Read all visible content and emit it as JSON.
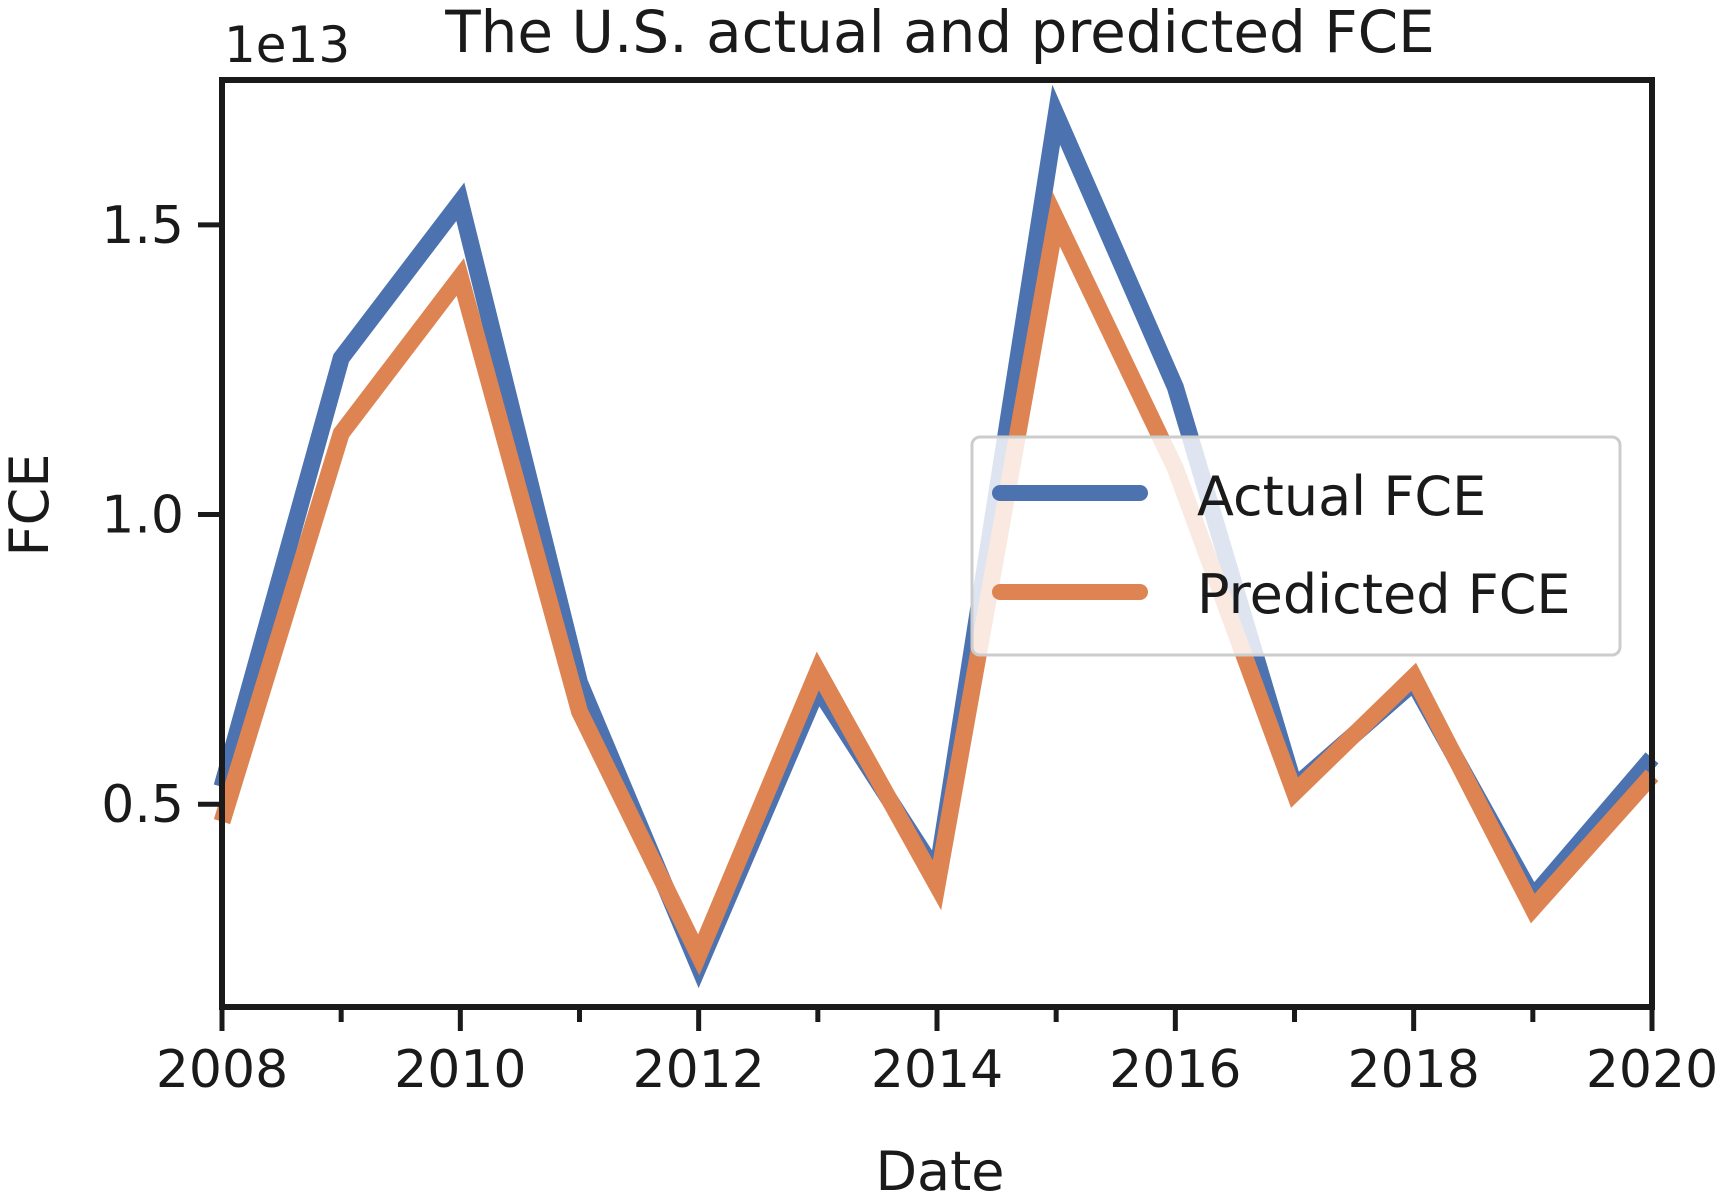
{
  "chart_data": {
    "type": "line",
    "title": "The U.S. actual and predicted FCE",
    "xlabel": "Date",
    "ylabel": "FCE",
    "y_offset_label": "1e13",
    "y_multiplier": 10000000000000.0,
    "x": [
      2008,
      2009,
      2010,
      2011,
      2012,
      2013,
      2014,
      2015,
      2016,
      2017,
      2018,
      2019,
      2020
    ],
    "xlim": [
      2008,
      2020
    ],
    "ylim": [
      0.15,
      1.75
    ],
    "x_ticks": [
      2008,
      2010,
      2012,
      2014,
      2016,
      2018,
      2020
    ],
    "x_tick_labels": [
      "2008",
      "2010",
      "2012",
      "2014",
      "2016",
      "2018",
      "2020"
    ],
    "x_minor_ticks": [
      2009,
      2011,
      2013,
      2015,
      2017,
      2019
    ],
    "y_ticks": [
      0.5,
      1.0,
      1.5
    ],
    "y_tick_labels": [
      "0.5",
      "1.0",
      "1.5"
    ],
    "grid": false,
    "legend_position": "center-right",
    "series": [
      {
        "name": "Actual FCE",
        "color": "#4c72b0",
        "values": [
          0.53,
          1.27,
          1.54,
          0.71,
          0.22,
          0.7,
          0.38,
          1.69,
          1.22,
          0.53,
          0.71,
          0.34,
          0.58
        ]
      },
      {
        "name": "Predicted FCE",
        "color": "#dd8452",
        "values": [
          0.47,
          1.14,
          1.41,
          0.66,
          0.24,
          0.73,
          0.36,
          1.51,
          1.08,
          0.52,
          0.72,
          0.32,
          0.55
        ]
      }
    ]
  }
}
